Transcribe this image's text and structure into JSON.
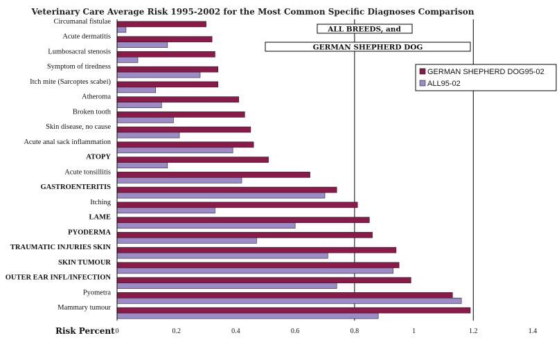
{
  "chart_data": {
    "type": "bar",
    "orientation": "horizontal",
    "title": "Veterinary Care Average Risk 1995-2002 for the Most Common Specific Diagnoses Comparison",
    "xlabel": "Risk Percent",
    "ylabel": "",
    "xlim": [
      0,
      1.4
    ],
    "x_ticks": [
      "0",
      "0.2",
      "0.4",
      "0.6",
      "0.8",
      "1",
      "1.2",
      "1.4"
    ],
    "gridlines_x": [
      0.8,
      1.2
    ],
    "legend_position": "right",
    "annotations": [
      "ALL BREEDS, and",
      "GERMAN SHEPHERD DOG"
    ],
    "categories": [
      {
        "label": "Circumanal fistulae",
        "bold": false
      },
      {
        "label": "Acute dermatitis",
        "bold": false
      },
      {
        "label": "Lumbosacral stenosis",
        "bold": false
      },
      {
        "label": "Symptom of tiredness",
        "bold": false
      },
      {
        "label": "Itch mite (Sarcoptes scabei)",
        "bold": false
      },
      {
        "label": "Atheroma",
        "bold": false
      },
      {
        "label": "Broken tooth",
        "bold": false
      },
      {
        "label": "Skin disease, no cause",
        "bold": false
      },
      {
        "label": "Acute anal sack inflammation",
        "bold": false
      },
      {
        "label": "ATOPY",
        "bold": true
      },
      {
        "label": "Acute tonsillitis",
        "bold": false
      },
      {
        "label": "GASTROENTERITIS",
        "bold": true
      },
      {
        "label": "Itching",
        "bold": false
      },
      {
        "label": "LAME",
        "bold": true
      },
      {
        "label": "PYODERMA",
        "bold": true
      },
      {
        "label": "TRAUMATIC INJURIES SKIN",
        "bold": true
      },
      {
        "label": "SKIN TUMOUR",
        "bold": true
      },
      {
        "label": "OUTER EAR INFL/INFECTION",
        "bold": true
      },
      {
        "label": "Pyometra",
        "bold": false
      },
      {
        "label": "Mammary tumour",
        "bold": false
      }
    ],
    "series": [
      {
        "name": "GERMAN SHEPHERD DOG95-02",
        "color": "#8b1a4a",
        "values": [
          0.3,
          0.32,
          0.33,
          0.34,
          0.34,
          0.41,
          0.43,
          0.45,
          0.46,
          0.51,
          0.65,
          0.74,
          0.81,
          0.85,
          0.86,
          0.94,
          0.95,
          0.99,
          1.13,
          1.19
        ]
      },
      {
        "name": "ALL95-02",
        "color": "#9b8cc8",
        "values": [
          0.03,
          0.17,
          0.07,
          0.28,
          0.13,
          0.15,
          0.19,
          0.21,
          0.39,
          0.17,
          0.42,
          0.7,
          0.33,
          0.6,
          0.47,
          0.71,
          0.93,
          0.74,
          1.16,
          0.88
        ]
      }
    ]
  }
}
